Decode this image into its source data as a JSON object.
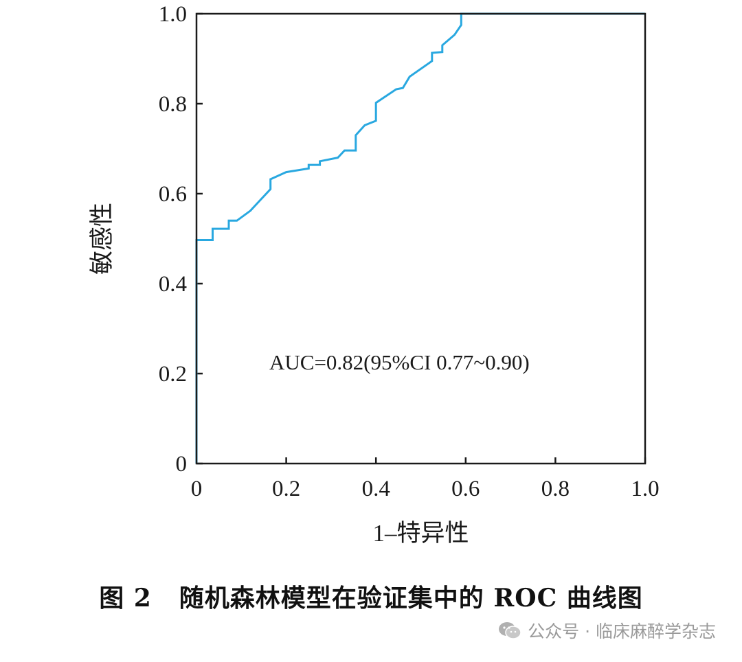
{
  "chart_data": {
    "type": "line",
    "title": "",
    "xlabel": "1–特异性",
    "ylabel": "敏感性",
    "xlim": [
      0,
      1
    ],
    "ylim": [
      0,
      1
    ],
    "x_ticks": [
      "0",
      "0.2",
      "0.4",
      "0.6",
      "0.8",
      "1.0"
    ],
    "y_ticks": [
      "0",
      "0.2",
      "0.4",
      "0.6",
      "0.8",
      "1.0"
    ],
    "grid": false,
    "series_color": "#29a8e0",
    "annotation": "AUC=0.82(95%CI 0.77~0.90)",
    "series": [
      {
        "x": [
          0,
          0,
          0.036,
          0.036,
          0.072,
          0.072,
          0.09,
          0.12,
          0.165,
          0.165,
          0.2,
          0.25,
          0.25,
          0.275,
          0.275,
          0.315,
          0.33,
          0.33,
          0.355,
          0.355,
          0.375,
          0.375,
          0.4,
          0.4,
          0.445,
          0.46,
          0.475,
          0.525,
          0.525,
          0.548,
          0.548,
          0.575,
          0.59,
          0.59,
          1.0
        ],
        "y": [
          0,
          0.497,
          0.497,
          0.522,
          0.522,
          0.54,
          0.54,
          0.562,
          0.61,
          0.632,
          0.648,
          0.656,
          0.664,
          0.664,
          0.672,
          0.68,
          0.696,
          0.696,
          0.696,
          0.73,
          0.752,
          0.752,
          0.762,
          0.802,
          0.832,
          0.835,
          0.86,
          0.895,
          0.913,
          0.915,
          0.93,
          0.953,
          0.975,
          1.0,
          1.0
        ]
      }
    ]
  },
  "caption": {
    "figure_num": "图 2",
    "text": "随机森林模型在验证集中的 ROC 曲线图"
  },
  "watermark": {
    "icon": "wechat-icon",
    "text": "公众号 · 临床麻醉学杂志"
  }
}
